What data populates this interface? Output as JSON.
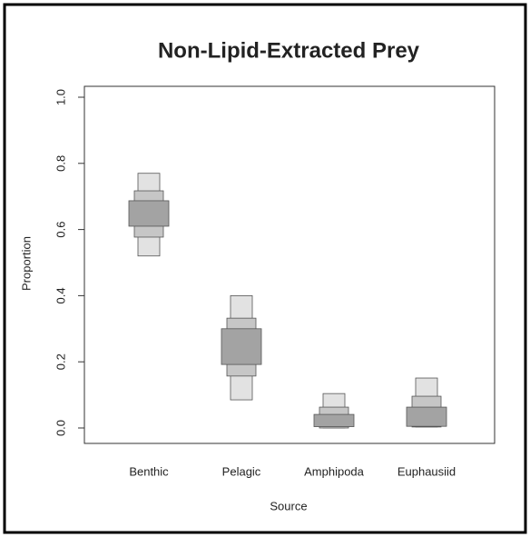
{
  "chart_data": {
    "type": "interval",
    "title": "Non-Lipid-Extracted Prey",
    "x_label": "Source",
    "y_label": "Proportion",
    "categories": [
      "Benthic",
      "Pelagic",
      "Amphipoda",
      "Euphausiid"
    ],
    "series": [
      {
        "color": "#e2e2e2",
        "low": [
          0.52,
          0.085,
          0.0,
          0.003
        ],
        "high": [
          0.77,
          0.4,
          0.104,
          0.151
        ]
      },
      {
        "color": "#c6c6c6",
        "low": [
          0.577,
          0.157,
          0.0,
          0.003
        ],
        "high": [
          0.717,
          0.332,
          0.063,
          0.096
        ]
      },
      {
        "color": "#a3a3a3",
        "low": [
          0.61,
          0.192,
          0.004,
          0.005
        ],
        "high": [
          0.687,
          0.3,
          0.041,
          0.063
        ]
      }
    ],
    "ylim": [
      0.0,
      1.0
    ],
    "yticks": [
      {
        "value": 0,
        "label": "0.0"
      },
      {
        "value": 0.2,
        "label": "0.2"
      },
      {
        "value": 0.4,
        "label": "0.4"
      },
      {
        "value": 0.6,
        "label": "0.6"
      },
      {
        "value": 0.8,
        "label": "0.8"
      },
      {
        "value": 1,
        "label": "1.0"
      }
    ]
  }
}
